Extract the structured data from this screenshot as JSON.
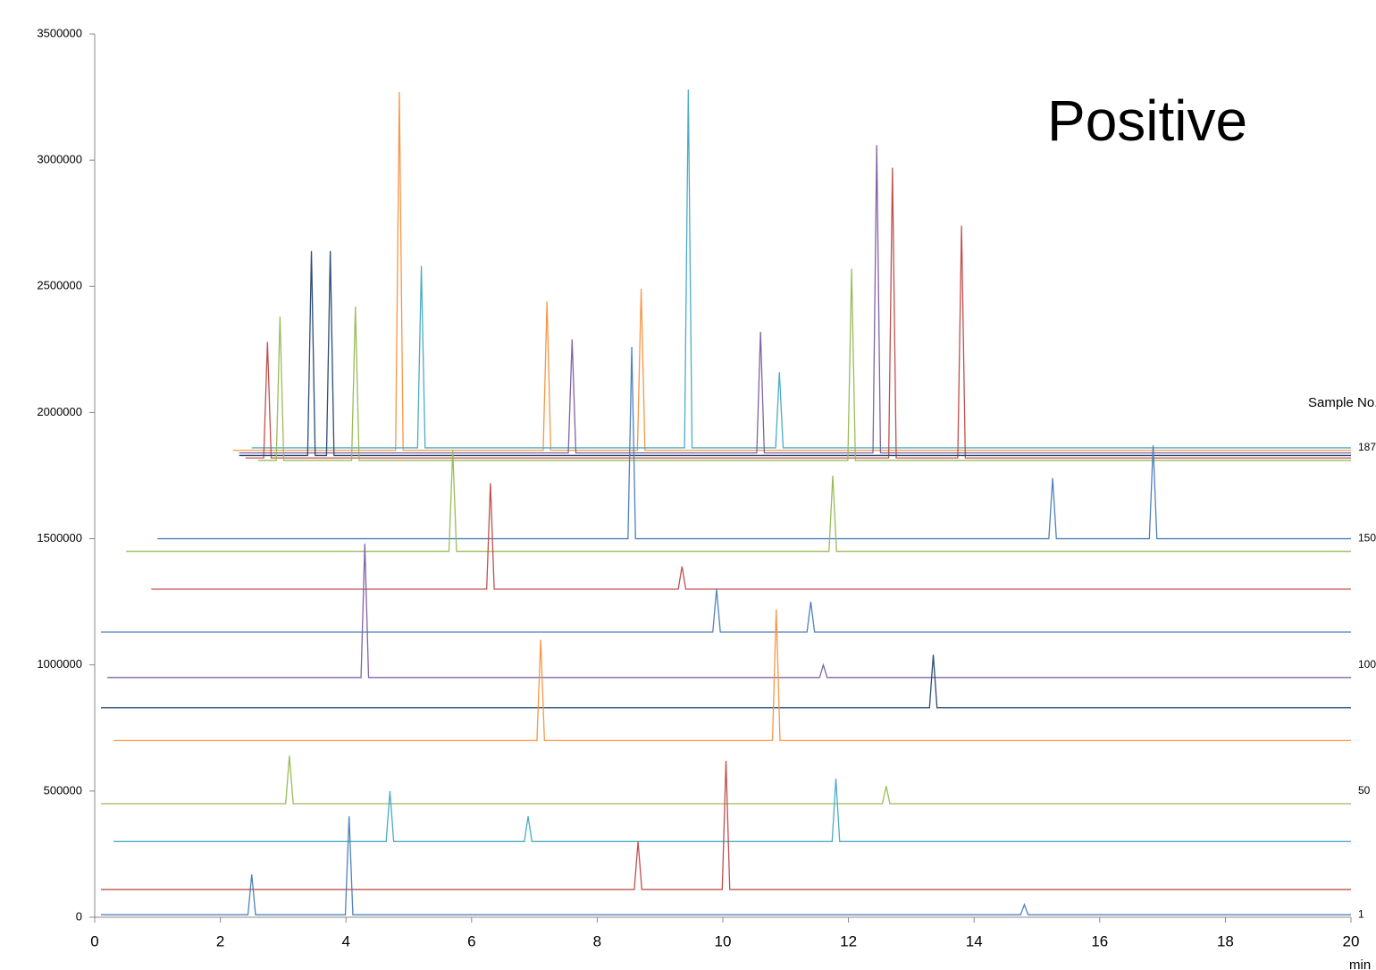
{
  "chart_data": {
    "type": "line",
    "title": "Positive",
    "x_label": "min",
    "annotation": "Sample No.",
    "sample_labels": [
      {
        "value": 10000,
        "label": "1"
      },
      {
        "value": 500000,
        "label": "50"
      },
      {
        "value": 1000000,
        "label": "100"
      },
      {
        "value": 1500000,
        "label": "150"
      },
      {
        "value": 1860000,
        "label": "187"
      }
    ],
    "xlim": [
      0,
      20
    ],
    "xticks": [
      0,
      2,
      4,
      6,
      8,
      10,
      12,
      14,
      16,
      18,
      20
    ],
    "ylim": [
      0,
      3500000
    ],
    "yticks": [
      0,
      500000,
      1000000,
      1500000,
      2000000,
      2500000,
      3000000,
      3500000
    ],
    "grid": false,
    "series": [
      {
        "color": "#f79646",
        "x": [
          2.2,
          4.79,
          4.85,
          4.91,
          7.14,
          7.2,
          7.26,
          8.64,
          8.7,
          8.76,
          20
        ],
        "values": [
          1850000,
          1850000,
          3270000,
          1850000,
          1850000,
          2440000,
          1850000,
          1850000,
          2490000,
          1850000,
          1850000
        ]
      },
      {
        "color": "#4bacc6",
        "x": [
          2.5,
          5.14,
          5.2,
          5.26,
          9.39,
          9.45,
          9.51,
          10.84,
          10.9,
          10.96,
          20
        ],
        "values": [
          1860000,
          1860000,
          2580000,
          1860000,
          1860000,
          3280000,
          1860000,
          1860000,
          2160000,
          1860000,
          1860000
        ]
      },
      {
        "color": "#8064a2",
        "x": [
          2.3,
          7.54,
          7.6,
          7.66,
          10.54,
          10.6,
          10.66,
          12.39,
          12.45,
          12.51,
          20
        ],
        "values": [
          1840000,
          1840000,
          2290000,
          1840000,
          1840000,
          2320000,
          1840000,
          1840000,
          3060000,
          1840000,
          1840000
        ]
      },
      {
        "color": "#c0504d",
        "x": [
          2.4,
          2.69,
          2.75,
          2.81,
          12.64,
          12.7,
          12.76,
          13.74,
          13.8,
          13.86,
          20
        ],
        "values": [
          1820000,
          1820000,
          2280000,
          1820000,
          1820000,
          2970000,
          1820000,
          1820000,
          2740000,
          1820000,
          1820000
        ]
      },
      {
        "color": "#2c4d75",
        "x": [
          2.3,
          3.39,
          3.45,
          3.51,
          3.69,
          3.75,
          3.81,
          20
        ],
        "values": [
          1830000,
          1830000,
          2640000,
          1830000,
          1830000,
          2640000,
          1830000,
          1830000
        ]
      },
      {
        "color": "#9bbb59",
        "x": [
          2.6,
          2.89,
          2.95,
          3.01,
          4.09,
          4.15,
          4.21,
          11.99,
          12.05,
          12.11,
          20
        ],
        "values": [
          1810000,
          1810000,
          2380000,
          1810000,
          1810000,
          2420000,
          1810000,
          1810000,
          2570000,
          1810000,
          1810000
        ]
      },
      {
        "color": "#4f81bd",
        "x": [
          1.0,
          8.49,
          8.55,
          8.61,
          15.19,
          15.25,
          15.31,
          16.79,
          16.85,
          16.91,
          20
        ],
        "values": [
          1500000,
          1500000,
          2260000,
          1500000,
          1500000,
          1740000,
          1500000,
          1500000,
          1870000,
          1500000,
          1500000
        ]
      },
      {
        "color": "#9bbb59",
        "x": [
          0.5,
          5.64,
          5.7,
          5.76,
          11.69,
          11.75,
          11.81,
          20
        ],
        "values": [
          1450000,
          1450000,
          1850000,
          1450000,
          1450000,
          1750000,
          1450000,
          1450000
        ]
      },
      {
        "color": "#c0504d",
        "x": [
          0.9,
          6.24,
          6.3,
          6.36,
          9.29,
          9.35,
          9.41,
          20
        ],
        "values": [
          1300000,
          1300000,
          1720000,
          1300000,
          1300000,
          1390000,
          1300000,
          1300000
        ]
      },
      {
        "color": "#4f81bd",
        "x": [
          0.1,
          9.84,
          9.9,
          9.96,
          11.34,
          11.4,
          11.46,
          20
        ],
        "values": [
          1130000,
          1130000,
          1300000,
          1130000,
          1130000,
          1250000,
          1130000,
          1130000
        ]
      },
      {
        "color": "#8064a2",
        "x": [
          0.2,
          4.24,
          4.3,
          4.36,
          11.54,
          11.6,
          11.66,
          20
        ],
        "values": [
          950000,
          950000,
          1480000,
          950000,
          950000,
          1000000,
          950000,
          950000
        ]
      },
      {
        "color": "#2c4d75",
        "x": [
          0.1,
          13.29,
          13.35,
          13.41,
          20
        ],
        "values": [
          830000,
          830000,
          1040000,
          830000,
          830000
        ]
      },
      {
        "color": "#f79646",
        "x": [
          0.3,
          7.04,
          7.1,
          7.16,
          10.79,
          10.85,
          10.91,
          20
        ],
        "values": [
          700000,
          700000,
          1100000,
          700000,
          700000,
          1220000,
          700000,
          700000
        ]
      },
      {
        "color": "#9bbb59",
        "x": [
          0.1,
          3.04,
          3.1,
          3.16,
          12.54,
          12.6,
          12.66,
          20
        ],
        "values": [
          450000,
          450000,
          640000,
          450000,
          450000,
          520000,
          450000,
          450000
        ]
      },
      {
        "color": "#4bacc6",
        "x": [
          0.3,
          4.64,
          4.7,
          4.76,
          6.84,
          6.9,
          6.96,
          11.74,
          11.8,
          11.86,
          20
        ],
        "values": [
          300000,
          300000,
          500000,
          300000,
          300000,
          400000,
          300000,
          300000,
          550000,
          300000,
          300000
        ]
      },
      {
        "color": "#c0504d",
        "x": [
          0.1,
          8.59,
          8.65,
          8.71,
          9.99,
          10.05,
          10.11,
          20
        ],
        "values": [
          110000,
          110000,
          300000,
          110000,
          110000,
          620000,
          110000,
          110000
        ]
      },
      {
        "color": "#4f81bd",
        "x": [
          0.1,
          2.44,
          2.5,
          2.56,
          3.99,
          4.05,
          4.11,
          14.74,
          14.8,
          14.86,
          20
        ],
        "values": [
          10000,
          10000,
          170000,
          10000,
          10000,
          400000,
          10000,
          10000,
          50000,
          10000,
          10000
        ]
      }
    ]
  }
}
